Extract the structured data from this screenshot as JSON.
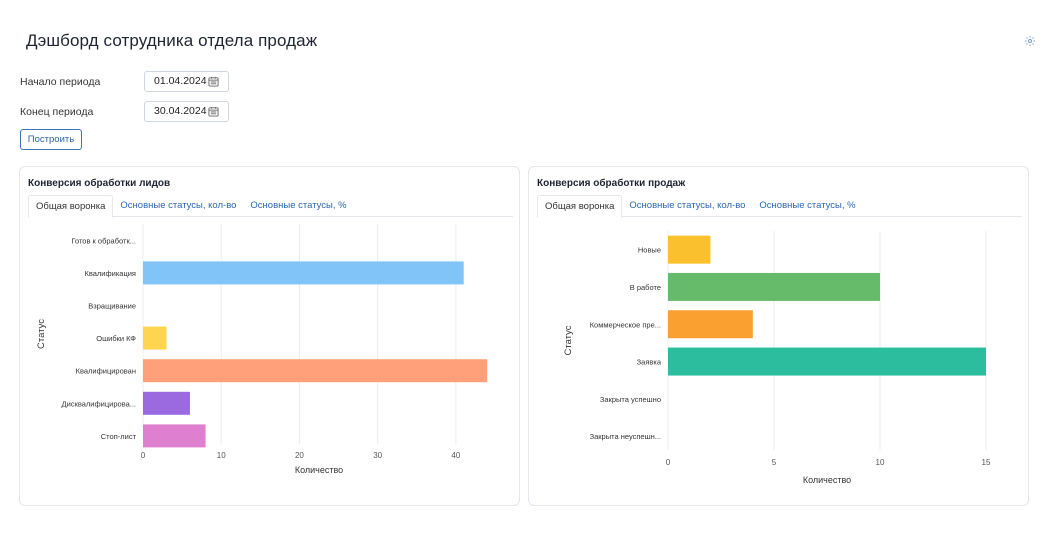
{
  "page": {
    "title": "Дэшборд сотрудника отдела продаж",
    "settings_icon": "gear-icon"
  },
  "filters": {
    "start_label": "Начало периода",
    "start_value": "01.04.2024",
    "end_label": "Конец периода",
    "end_value": "30.04.2024",
    "calendar_icon": "calendar-icon",
    "build_label": "Построить"
  },
  "cards": [
    {
      "title": "Конверсия обработки лидов",
      "tabs": [
        "Общая воронка",
        "Основные статусы, кол-во",
        "Основные статусы, %"
      ],
      "active_tab": 0
    },
    {
      "title": "Конверсия обработки продаж",
      "tabs": [
        "Общая воронка",
        "Основные статусы, кол-во",
        "Основные статусы, %"
      ],
      "active_tab": 0
    }
  ],
  "chart_data": [
    {
      "type": "bar",
      "orientation": "horizontal",
      "categories": [
        "Готов к обработк...",
        "Квалификация",
        "Взращивание",
        "Ошибки КФ",
        "Квалифицирован",
        "Дисквалифицирова...",
        "Стоп-лист"
      ],
      "values": [
        0,
        41,
        0,
        3,
        44,
        6,
        8
      ],
      "colors": [
        "#8fc6f3",
        "#80c4f8",
        "#c8c8c8",
        "#ffd54f",
        "#ffa07a",
        "#9b6ae0",
        "#de7fd0"
      ],
      "xlabel": "Количество",
      "ylabel": "Статус",
      "xlim": [
        0,
        45
      ],
      "xticks": [
        0,
        10,
        20,
        30,
        40
      ],
      "grid": true
    },
    {
      "type": "bar",
      "orientation": "horizontal",
      "categories": [
        "Новые",
        "В работе",
        "Коммерческое пре...",
        "Заявка",
        "Закрыта успешно",
        "Закрыта неуспешн..."
      ],
      "values": [
        2,
        10,
        4,
        15,
        0,
        0
      ],
      "colors": [
        "#fbc02d",
        "#66bb6a",
        "#f9a030",
        "#2bbd9e",
        "#999999",
        "#999999"
      ],
      "xlabel": "Количество",
      "ylabel": "Статус",
      "xlim": [
        0,
        15
      ],
      "xticks": [
        0,
        5,
        10,
        15
      ],
      "grid": true
    }
  ]
}
